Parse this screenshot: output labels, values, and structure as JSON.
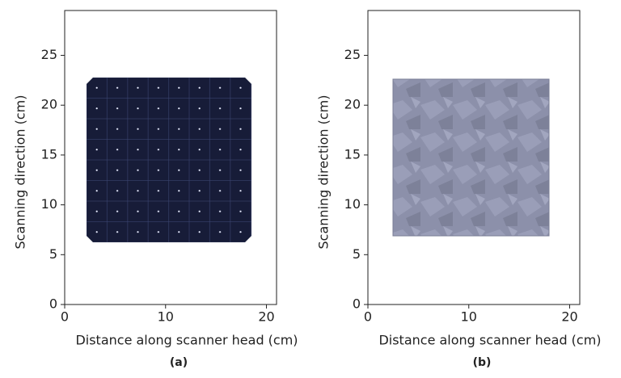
{
  "chart_data": [
    {
      "type": "image",
      "caption": "(a)",
      "xlabel": "Distance along scanner head (cm)",
      "ylabel": "Scanning direction (cm)",
      "xlim": [
        0,
        21
      ],
      "ylim": [
        0,
        29.5
      ],
      "xticks": [
        0,
        10,
        20
      ],
      "yticks": [
        0,
        5,
        10,
        15,
        20,
        25
      ]
    },
    {
      "type": "image",
      "caption": "(b)",
      "xlabel": "Distance along scanner head (cm)",
      "ylabel": "Scanning direction (cm)",
      "xlim": [
        0,
        21
      ],
      "ylim": [
        0,
        29.5
      ],
      "xticks": [
        0,
        10,
        20
      ],
      "yticks": [
        0,
        5,
        10,
        15,
        20,
        25
      ]
    }
  ]
}
